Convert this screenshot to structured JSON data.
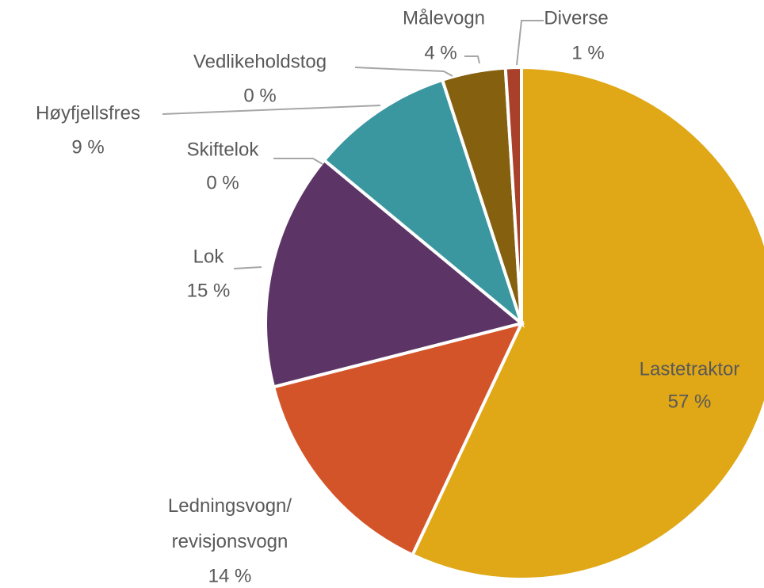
{
  "chart_data": {
    "type": "pie",
    "categories": [
      "Lastetraktor",
      "Ledningsvogn/revisjonsvogn",
      "Lok",
      "Skiftelok",
      "Høyfjellsfres",
      "Vedlikeholdstog",
      "Målevogn",
      "Diverse"
    ],
    "values": [
      57,
      14,
      15,
      0,
      9,
      0,
      4,
      1
    ],
    "value_labels": [
      "57 %",
      "14 %",
      "15 %",
      "0 %",
      "9 %",
      "0 %",
      "4 %",
      "1 %"
    ],
    "colors": [
      "#e0a716",
      "#d35428",
      "#5c3566",
      "#6e8fc4",
      "#3a979f",
      "#a5a5a5",
      "#85600e",
      "#a8402a"
    ]
  }
}
